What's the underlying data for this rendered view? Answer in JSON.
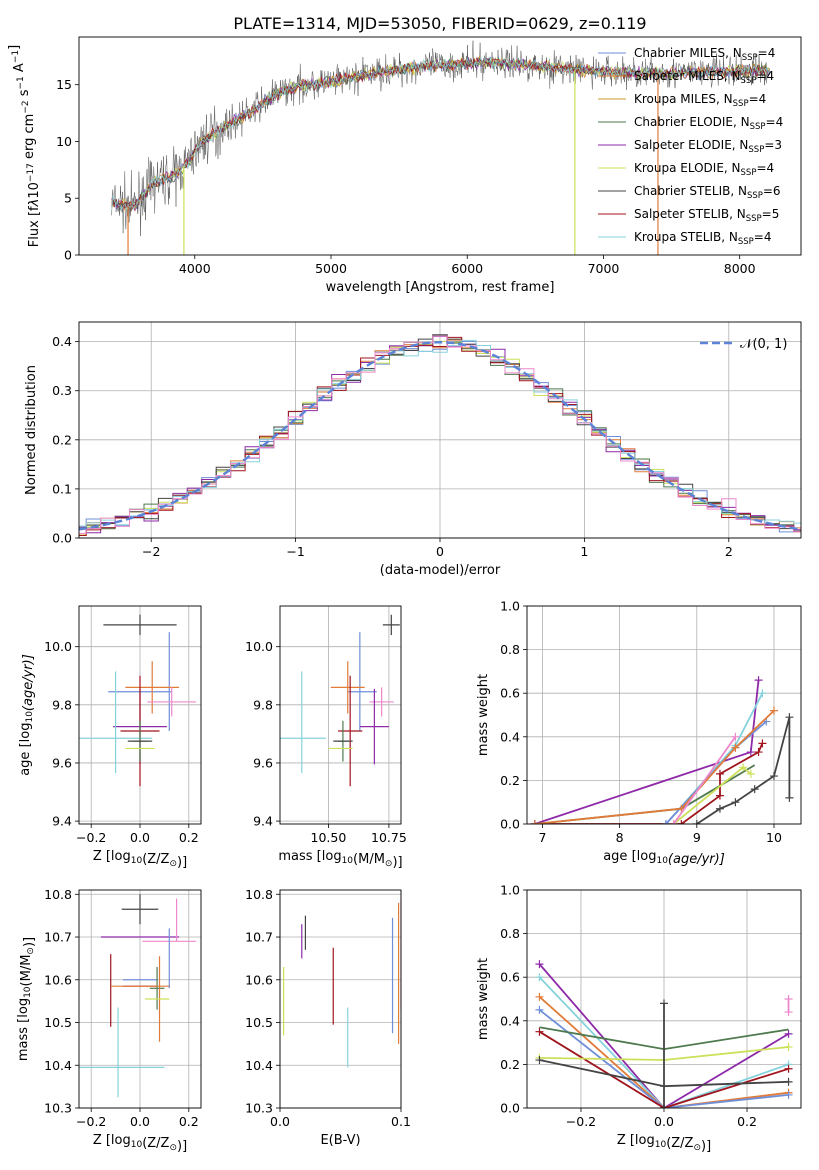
{
  "figure_title": "PLATE=1314, MJD=53050, FIBERID=0629, z=0.119",
  "colors": {
    "chabrier_miles": "#6f8fd8",
    "salpeter_miles": "#e07b39",
    "kroupa_miles": "#c99a2e",
    "chabrier_elodie": "#4e7a4e",
    "salpeter_elodie": "#8e2aa8",
    "kroupa_elodie": "#cde05a",
    "chabrier_stelib": "#444444",
    "salpeter_stelib": "#a0141e",
    "kroupa_stelib": "#86d2dc",
    "pink": "#ee88cc",
    "normal": "#5b84d6"
  },
  "chart_data": [
    {
      "id": "spectrum",
      "type": "line",
      "title": "",
      "xlabel": "wavelength [Angstrom, rest frame]",
      "ylabel_parts": [
        "Flux [f",
        "λ",
        "10",
        "−17",
        " erg cm",
        "−2",
        " s",
        "−1",
        " A",
        "−1",
        "]"
      ],
      "xlim": [
        3150,
        8450
      ],
      "ylim": [
        0,
        19.2
      ],
      "xticks": [
        4000,
        5000,
        6000,
        7000,
        8000
      ],
      "yticks": [
        0,
        5,
        10,
        15
      ],
      "grid": false,
      "legend_position": "upper-right",
      "legend": [
        {
          "label": "Chabrier MILES, N",
          "sub": "SSP",
          "val": "=4",
          "color_key": "chabrier_miles"
        },
        {
          "label": "Salpeter MILES, N",
          "sub": "SSP",
          "val": "=4",
          "color_key": "salpeter_miles"
        },
        {
          "label": "Kroupa MILES, N",
          "sub": "SSP",
          "val": "=4",
          "color_key": "kroupa_miles"
        },
        {
          "label": "Chabrier ELODIE, N",
          "sub": "SSP",
          "val": "=4",
          "color_key": "chabrier_elodie"
        },
        {
          "label": "Salpeter ELODIE, N",
          "sub": "SSP",
          "val": "=3",
          "color_key": "salpeter_elodie"
        },
        {
          "label": "Kroupa ELODIE, N",
          "sub": "SSP",
          "val": "=4",
          "color_key": "kroupa_elodie"
        },
        {
          "label": "Chabrier STELIB, N",
          "sub": "SSP",
          "val": "=6",
          "color_key": "chabrier_stelib"
        },
        {
          "label": "Salpeter STELIB, N",
          "sub": "SSP",
          "val": "=5",
          "color_key": "salpeter_stelib"
        },
        {
          "label": "Kroupa STELIB, N",
          "sub": "SSP",
          "val": "=4",
          "color_key": "kroupa_stelib"
        }
      ],
      "continuum": {
        "x": [
          3390,
          3550,
          3700,
          3850,
          3950,
          4050,
          4200,
          4400,
          4600,
          4800,
          5000,
          5300,
          5600,
          5900,
          6200,
          6500,
          6800,
          7100,
          7400,
          7700,
          8000,
          8200
        ],
        "y": [
          4.6,
          4.2,
          6.4,
          7.0,
          8.2,
          10.0,
          11.2,
          12.5,
          14.2,
          15.0,
          15.2,
          16.0,
          16.5,
          16.8,
          17.0,
          16.7,
          16.3,
          16.1,
          16.0,
          16.1,
          16.2,
          16.3
        ]
      },
      "dropouts": [
        {
          "x": 3510,
          "color_key": "salpeter_miles"
        },
        {
          "x": 3920,
          "color_key": "kroupa_elodie"
        },
        {
          "x": 6790,
          "color_key": "kroupa_elodie"
        },
        {
          "x": 7400,
          "color_key": "salpeter_miles"
        }
      ]
    },
    {
      "id": "residuals",
      "type": "bar",
      "title": "",
      "xlabel": "(data-model)/error",
      "ylabel": "Normed distribution",
      "xlim": [
        -2.5,
        2.5
      ],
      "ylim": [
        0,
        0.44
      ],
      "xticks": [
        -2,
        -1,
        0,
        1,
        2
      ],
      "yticks": [
        0.0,
        0.1,
        0.2,
        0.3,
        0.4
      ],
      "grid": true,
      "legend_position": "upper-right",
      "legend": [
        {
          "label": "𝒩(0, 1)",
          "color_key": "normal"
        }
      ],
      "bin_width": 0.1,
      "series_color_keys": [
        "chabrier_miles",
        "salpeter_miles",
        "kroupa_elodie",
        "chabrier_elodie",
        "salpeter_elodie",
        "chabrier_stelib",
        "salpeter_stelib",
        "kroupa_stelib",
        "pink"
      ]
    },
    {
      "id": "age_vs_z",
      "type": "scatter",
      "title": "",
      "xlabel_parts": [
        "Z [log",
        "10",
        "(Z/Z",
        "⊙",
        ")]"
      ],
      "ylabel_parts": [
        "age  [log",
        "10",
        "(age/yr)]"
      ],
      "xlim": [
        -0.25,
        0.25
      ],
      "ylim": [
        9.39,
        10.14
      ],
      "xticks": [
        -0.2,
        0.0,
        0.2
      ],
      "yticks": [
        9.4,
        9.6,
        9.8,
        10.0
      ],
      "grid": true,
      "points": [
        {
          "x": 0.0,
          "y": 10.075,
          "xerr": 0.15,
          "yerr": 0.035,
          "color_key": "chabrier_stelib"
        },
        {
          "x": 0.0,
          "y": 9.845,
          "xerr": 0.13,
          "yerr": 0.0,
          "color_key": "chabrier_miles"
        },
        {
          "x": 0.12,
          "y": 9.88,
          "xerr": 0.0,
          "yerr": 0.17,
          "color_key": "chabrier_miles"
        },
        {
          "x": 0.05,
          "y": 9.86,
          "xerr": 0.11,
          "yerr": 0.09,
          "color_key": "salpeter_miles"
        },
        {
          "x": 0.13,
          "y": 9.81,
          "xerr": 0.1,
          "yerr": 0.05,
          "color_key": "pink"
        },
        {
          "x": 0.0,
          "y": 9.725,
          "xerr": 0.11,
          "yerr": 0.13,
          "color_key": "salpeter_elodie"
        },
        {
          "x": 0.0,
          "y": 9.71,
          "xerr": 0.08,
          "yerr": 0.19,
          "color_key": "salpeter_stelib"
        },
        {
          "x": -0.13,
          "y": 9.685,
          "xerr": 0.18,
          "yerr": 0.0,
          "color_key": "kroupa_stelib"
        },
        {
          "x": -0.1,
          "y": 9.74,
          "xerr": 0.0,
          "yerr": 0.175,
          "color_key": "kroupa_stelib"
        },
        {
          "x": 0.0,
          "y": 9.675,
          "xerr": 0.03,
          "yerr": 0.07,
          "color_key": "chabrier_elodie"
        },
        {
          "x": 0.0,
          "y": 9.675,
          "xerr": 0.05,
          "yerr": 0.0,
          "color_key": "chabrier_stelib"
        },
        {
          "x": 0.0,
          "y": 9.65,
          "xerr": 0.06,
          "yerr": 0.0,
          "color_key": "kroupa_elodie"
        }
      ]
    },
    {
      "id": "age_vs_mass",
      "type": "scatter",
      "title": "",
      "xlabel_parts": [
        "mass [log",
        "10",
        "(M/M",
        "⊙",
        ")]"
      ],
      "xlim": [
        10.3,
        10.8
      ],
      "ylim": [
        9.39,
        10.14
      ],
      "xticks": [
        10.5,
        10.75
      ],
      "yticks": [
        9.4,
        9.6,
        9.8,
        10.0
      ],
      "grid": true,
      "points": [
        {
          "x": 10.76,
          "y": 10.075,
          "xerr": 0.035,
          "yerr": 0.035,
          "color_key": "chabrier_stelib"
        },
        {
          "x": 10.64,
          "y": 9.845,
          "xerr": 0.06,
          "yerr": 0.0,
          "color_key": "chabrier_miles"
        },
        {
          "x": 10.63,
          "y": 9.88,
          "xerr": 0.0,
          "yerr": 0.17,
          "color_key": "chabrier_miles"
        },
        {
          "x": 10.58,
          "y": 9.86,
          "xerr": 0.07,
          "yerr": 0.09,
          "color_key": "salpeter_miles"
        },
        {
          "x": 10.72,
          "y": 9.81,
          "xerr": 0.05,
          "yerr": 0.05,
          "color_key": "pink"
        },
        {
          "x": 10.69,
          "y": 9.725,
          "xerr": 0.06,
          "yerr": 0.13,
          "color_key": "salpeter_elodie"
        },
        {
          "x": 10.59,
          "y": 9.71,
          "xerr": 0.05,
          "yerr": 0.19,
          "color_key": "salpeter_stelib"
        },
        {
          "x": 10.38,
          "y": 9.685,
          "xerr": 0.11,
          "yerr": 0.0,
          "color_key": "kroupa_stelib"
        },
        {
          "x": 10.39,
          "y": 9.74,
          "xerr": 0.0,
          "yerr": 0.175,
          "color_key": "kroupa_stelib"
        },
        {
          "x": 10.56,
          "y": 9.675,
          "xerr": 0.02,
          "yerr": 0.07,
          "color_key": "chabrier_elodie"
        },
        {
          "x": 10.56,
          "y": 9.675,
          "xerr": 0.04,
          "yerr": 0.0,
          "color_key": "chabrier_stelib"
        },
        {
          "x": 10.55,
          "y": 9.65,
          "xerr": 0.05,
          "yerr": 0.0,
          "color_key": "kroupa_elodie"
        }
      ]
    },
    {
      "id": "mass_weight_vs_age",
      "type": "line",
      "title": "",
      "xlabel_parts": [
        "age  [log",
        "10",
        "(age/yr)]"
      ],
      "ylabel": "mass weight",
      "xlim": [
        6.8,
        10.35
      ],
      "ylim": [
        0.0,
        1.0
      ],
      "xticks": [
        7,
        8,
        9,
        10
      ],
      "yticks": [
        0.0,
        0.2,
        0.4,
        0.6,
        0.8,
        1.0
      ],
      "grid": true,
      "series": [
        {
          "color_key": "chabrier_stelib",
          "x": [
            9.0,
            9.3,
            9.5,
            9.75,
            10.0,
            10.2,
            10.2
          ],
          "y": [
            0.0,
            0.07,
            0.1,
            0.16,
            0.22,
            0.49,
            0.12
          ],
          "markers": true
        },
        {
          "color_key": "salpeter_stelib",
          "x": [
            6.9,
            8.8,
            9.3,
            9.3,
            9.8,
            9.85
          ],
          "y": [
            0.0,
            0.0,
            0.13,
            0.23,
            0.33,
            0.37
          ],
          "markers": true
        },
        {
          "color_key": "salpeter_elodie",
          "x": [
            6.9,
            9.7,
            9.8
          ],
          "y": [
            0.0,
            0.33,
            0.66
          ],
          "markers": true
        },
        {
          "color_key": "chabrier_elodie",
          "x": [
            6.9,
            8.8,
            9.75
          ],
          "y": [
            0.0,
            0.07,
            0.27
          ],
          "markers": false
        },
        {
          "color_key": "kroupa_stelib",
          "x": [
            8.6,
            9.5,
            9.85
          ],
          "y": [
            0.0,
            0.36,
            0.6
          ],
          "markers": true
        },
        {
          "color_key": "chabrier_miles",
          "x": [
            8.6,
            9.5,
            9.9
          ],
          "y": [
            0.0,
            0.35,
            0.47
          ],
          "markers": true
        },
        {
          "color_key": "salpeter_miles",
          "x": [
            6.9,
            8.8,
            9.5,
            10.0
          ],
          "y": [
            0.0,
            0.07,
            0.35,
            0.52
          ],
          "markers": true
        },
        {
          "color_key": "kroupa_elodie",
          "x": [
            8.7,
            9.6,
            9.7
          ],
          "y": [
            0.0,
            0.26,
            0.23
          ],
          "markers": true
        },
        {
          "color_key": "pink",
          "x": [
            8.7,
            9.5
          ],
          "y": [
            0.0,
            0.4
          ],
          "markers": true
        }
      ]
    },
    {
      "id": "mass_vs_z",
      "type": "scatter",
      "title": "",
      "xlabel_parts": [
        "Z [log",
        "10",
        "(Z/Z",
        "⊙",
        ")]"
      ],
      "ylabel_parts": [
        "mass [log",
        "10",
        "(M/M",
        "⊙",
        ")]"
      ],
      "xlim": [
        -0.25,
        0.25
      ],
      "ylim": [
        10.3,
        10.81
      ],
      "xticks": [
        -0.2,
        0.0,
        0.2
      ],
      "yticks": [
        10.3,
        10.4,
        10.5,
        10.6,
        10.7,
        10.8
      ],
      "grid": true,
      "points": [
        {
          "x": 0.0,
          "y": 10.765,
          "xerr": 0.075,
          "yerr": 0.035,
          "color_key": "chabrier_stelib"
        },
        {
          "x": 0.0,
          "y": 10.7,
          "xerr": 0.16,
          "yerr": 0.0,
          "color_key": "salpeter_elodie"
        },
        {
          "x": 0.15,
          "y": 10.74,
          "xerr": 0.0,
          "yerr": 0.05,
          "color_key": "pink"
        },
        {
          "x": 0.12,
          "y": 10.69,
          "xerr": 0.11,
          "yerr": 0.0,
          "color_key": "pink"
        },
        {
          "x": 0.12,
          "y": 10.65,
          "xerr": 0.0,
          "yerr": 0.07,
          "color_key": "chabrier_miles"
        },
        {
          "x": 0.0,
          "y": 10.6,
          "xerr": 0.07,
          "yerr": 0.0,
          "color_key": "chabrier_miles"
        },
        {
          "x": 0.0,
          "y": 10.585,
          "xerr": 0.07,
          "yerr": 0.0,
          "color_key": "salpeter_stelib"
        },
        {
          "x": -0.12,
          "y": 10.575,
          "xerr": 0.0,
          "yerr": 0.085,
          "color_key": "salpeter_stelib"
        },
        {
          "x": 0.07,
          "y": 10.58,
          "xerr": 0.03,
          "yerr": 0.05,
          "color_key": "chabrier_elodie"
        },
        {
          "x": 0.08,
          "y": 10.555,
          "xerr": 0.0,
          "yerr": 0.1,
          "color_key": "salpeter_miles"
        },
        {
          "x": 0.07,
          "y": 10.555,
          "xerr": 0.05,
          "yerr": 0.0,
          "color_key": "kroupa_elodie"
        },
        {
          "x": 0.0,
          "y": 10.585,
          "xerr": 0.12,
          "yerr": 0.0,
          "color_key": "salpeter_miles"
        },
        {
          "x": -0.1,
          "y": 10.395,
          "xerr": 0.2,
          "yerr": 0.0,
          "color_key": "kroupa_stelib"
        },
        {
          "x": -0.09,
          "y": 10.43,
          "xerr": 0.0,
          "yerr": 0.105,
          "color_key": "kroupa_stelib"
        }
      ]
    },
    {
      "id": "mass_vs_ebv",
      "type": "scatter",
      "title": "",
      "xlabel": "E(B-V)",
      "xlim": [
        0.0,
        0.1
      ],
      "ylim": [
        10.3,
        10.81
      ],
      "xticks": [
        0.0,
        0.1
      ],
      "yticks": [
        10.3,
        10.4,
        10.5,
        10.6,
        10.7,
        10.8
      ],
      "grid": true,
      "points": [
        {
          "x": 0.003,
          "y": 10.55,
          "xerr": 0.0,
          "yerr": 0.08,
          "color_key": "kroupa_elodie"
        },
        {
          "x": 0.018,
          "y": 10.69,
          "xerr": 0.0,
          "yerr": 0.04,
          "color_key": "salpeter_elodie"
        },
        {
          "x": 0.021,
          "y": 10.71,
          "xerr": 0.0,
          "yerr": 0.04,
          "color_key": "chabrier_stelib"
        },
        {
          "x": 0.044,
          "y": 10.585,
          "xerr": 0.0,
          "yerr": 0.09,
          "color_key": "salpeter_stelib"
        },
        {
          "x": 0.056,
          "y": 10.465,
          "xerr": 0.0,
          "yerr": 0.07,
          "color_key": "kroupa_stelib"
        },
        {
          "x": 0.093,
          "y": 10.61,
          "xerr": 0.0,
          "yerr": 0.135,
          "color_key": "chabrier_miles"
        },
        {
          "x": 0.098,
          "y": 10.615,
          "xerr": 0.0,
          "yerr": 0.165,
          "color_key": "salpeter_miles"
        },
        {
          "x": 0.1,
          "y": 10.66,
          "xerr": 0.0,
          "yerr": 0.13,
          "color_key": "pink"
        }
      ]
    },
    {
      "id": "mass_weight_vs_z",
      "type": "line",
      "title": "",
      "xlabel_parts": [
        "Z [log",
        "10",
        "(Z/Z",
        "⊙",
        ")]"
      ],
      "ylabel": "mass weight",
      "xlim": [
        -0.33,
        0.33
      ],
      "ylim": [
        0.0,
        1.0
      ],
      "xticks": [
        -0.2,
        0.0,
        0.2
      ],
      "yticks": [
        0.0,
        0.2,
        0.4,
        0.6,
        0.8,
        1.0
      ],
      "grid": true,
      "series": [
        {
          "color_key": "salpeter_elodie",
          "x": [
            -0.3,
            0.0,
            0.3
          ],
          "y": [
            0.66,
            0.0,
            0.34
          ],
          "markers": true
        },
        {
          "color_key": "kroupa_stelib",
          "x": [
            -0.3,
            0.0,
            0.3
          ],
          "y": [
            0.6,
            0.0,
            0.2
          ],
          "markers": true
        },
        {
          "color_key": "salpeter_miles",
          "x": [
            -0.3,
            0.0,
            0.3
          ],
          "y": [
            0.51,
            0.0,
            0.07
          ],
          "markers": true
        },
        {
          "color_key": "chabrier_miles",
          "x": [
            -0.3,
            0.0,
            0.3
          ],
          "y": [
            0.45,
            0.0,
            0.06
          ],
          "markers": true
        },
        {
          "color_key": "chabrier_elodie",
          "x": [
            -0.3,
            0.0,
            0.3
          ],
          "y": [
            0.37,
            0.27,
            0.36
          ],
          "markers": false
        },
        {
          "color_key": "salpeter_stelib",
          "x": [
            -0.3,
            0.0,
            0.3
          ],
          "y": [
            0.35,
            0.0,
            0.18
          ],
          "markers": true
        },
        {
          "color_key": "kroupa_elodie",
          "x": [
            -0.3,
            0.0,
            0.3
          ],
          "y": [
            0.23,
            0.22,
            0.28
          ],
          "markers": true
        },
        {
          "color_key": "chabrier_stelib",
          "x": [
            -0.3,
            0.0,
            0.3
          ],
          "y": [
            0.22,
            0.1,
            0.12
          ],
          "markers": true
        },
        {
          "color_key": "chabrier_stelib",
          "x": [
            0.0,
            0.0
          ],
          "y": [
            0.0,
            0.48
          ],
          "markers": true
        },
        {
          "color_key": "pink",
          "x": [
            0.3,
            0.3
          ],
          "y": [
            0.44,
            0.5
          ],
          "markers": true
        }
      ]
    }
  ]
}
